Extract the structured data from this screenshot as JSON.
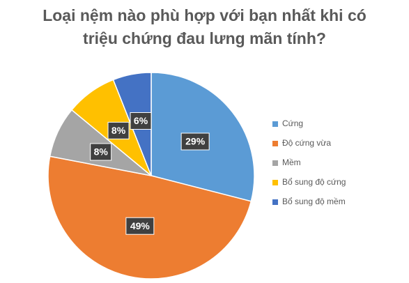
{
  "chart_data": {
    "type": "pie",
    "title": "Loại nệm nào phù hợp với bạn nhất khi có triệu chứng đau lưng mãn tính?",
    "categories": [
      "Cứng",
      "Độ cứng vừa",
      "Mềm",
      "Bổ sung độ cứng",
      "Bổ sung độ mềm"
    ],
    "values": [
      29,
      49,
      8,
      8,
      6
    ],
    "value_labels": [
      "29%",
      "49%",
      "8%",
      "8%",
      "6%"
    ],
    "colors": [
      "#5b9bd5",
      "#ed7d31",
      "#a5a5a5",
      "#ffc000",
      "#4472c4"
    ],
    "legend": "right"
  }
}
